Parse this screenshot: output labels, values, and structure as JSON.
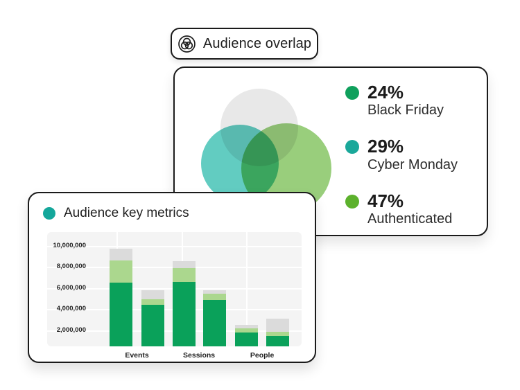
{
  "badge": {
    "label": "Audience overlap",
    "icon": "venn-diagram-icon"
  },
  "overlap_card": {
    "legend": [
      {
        "value": "24%",
        "label": "Black Friday",
        "color": "#0FA05C"
      },
      {
        "value": "29%",
        "label": "Cyber Monday",
        "color": "#1AA89A"
      },
      {
        "value": "47%",
        "label": "Authenticated",
        "color": "#5CB12C"
      }
    ],
    "venn_colors": [
      "#E8E8E8",
      "#62CCC1",
      "#99CE7C"
    ]
  },
  "metrics_card": {
    "title": "Audience key metrics",
    "title_dot_color": "#14A79B"
  },
  "chart_data": {
    "type": "bar",
    "stacked": true,
    "title": "Audience key metrics",
    "categories": [
      "Events",
      "Sessions",
      "People"
    ],
    "bars_per_category": 2,
    "segment_colors": [
      "#0AA15A",
      "#ABD78E",
      "#DBDBDB"
    ],
    "bars": [
      {
        "category": "Events",
        "segments": [
          6600000,
          2100000,
          1100000
        ]
      },
      {
        "category": "Events",
        "segments": [
          4450000,
          550000,
          850000
        ]
      },
      {
        "category": "Sessions",
        "segments": [
          6650000,
          1300000,
          650000
        ]
      },
      {
        "category": "Sessions",
        "segments": [
          4950000,
          550000,
          350000
        ]
      },
      {
        "category": "People",
        "segments": [
          1850000,
          400000,
          350000
        ]
      },
      {
        "category": "People",
        "segments": [
          1550000,
          350000,
          1300000
        ]
      }
    ],
    "y_ticks": [
      "10,000,000",
      "8,000,000",
      "6,000,000",
      "4,000,000",
      "2,000,000"
    ],
    "y_tick_values": [
      10000000,
      8000000,
      6000000,
      4000000,
      2000000
    ],
    "ylim": [
      550000,
      11350000
    ],
    "xlabel": "",
    "ylabel": "",
    "grid": true,
    "legend_position": "none"
  }
}
